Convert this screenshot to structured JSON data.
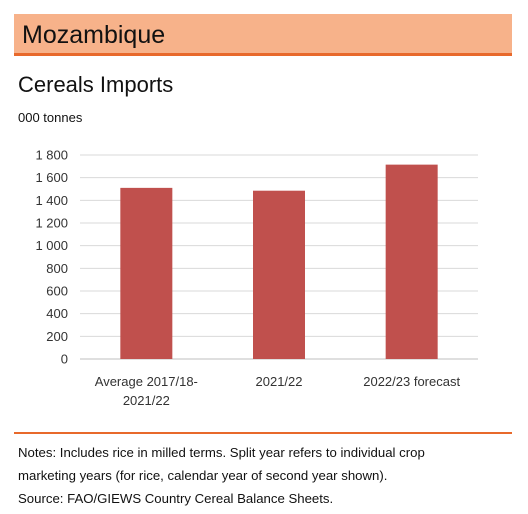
{
  "header": {
    "country": "Mozambique",
    "accent_color": "#e8692b",
    "band_color": "#f7b28a"
  },
  "chart_data": {
    "type": "bar",
    "title": "Cereals Imports",
    "ylabel": "000 tonnes",
    "xlabel": "",
    "categories": [
      [
        "Average 2017/18-",
        "2021/22"
      ],
      [
        "2021/22"
      ],
      [
        "2022/23 forecast"
      ]
    ],
    "values": [
      1510,
      1485,
      1715
    ],
    "ylim": [
      0,
      1800
    ],
    "yticks": [
      0,
      200,
      400,
      600,
      800,
      1000,
      1200,
      1400,
      1600,
      1800
    ],
    "ytick_labels": [
      "0",
      "200",
      "400",
      "600",
      "800",
      "1 000",
      "1 200",
      "1 400",
      "1 600",
      "1 800"
    ],
    "grid": true,
    "legend": "none",
    "bar_color": "#c0504d"
  },
  "notes": {
    "line1": "Notes: Includes rice in milled terms. Split year refers to individual crop",
    "line2": "marketing years (for rice, calendar year of second year shown).",
    "line3": "Source: FAO/GIEWS Country Cereal Balance Sheets."
  }
}
